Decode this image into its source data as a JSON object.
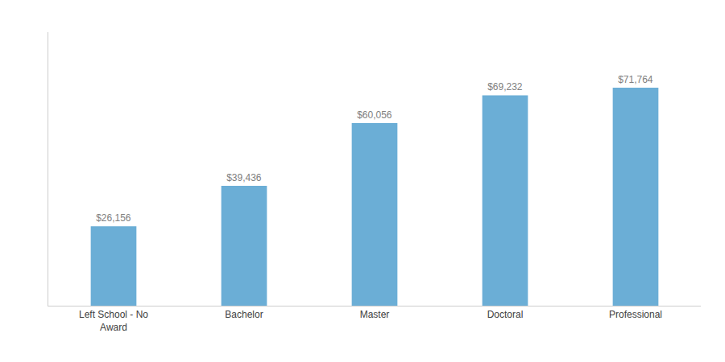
{
  "chart_data": {
    "type": "bar",
    "categories": [
      "Left School - No\nAward",
      "Bachelor",
      "Master",
      "Doctoral",
      "Professional"
    ],
    "values": [
      26156,
      39436,
      60056,
      69232,
      71764
    ],
    "value_labels": [
      "$26,156",
      "$39,436",
      "$60,056",
      "$69,232",
      "$71,764"
    ],
    "data_labels": true,
    "color": "#6BAED6",
    "ylim": [
      0,
      90000
    ],
    "tick_labels": "x",
    "grid": false
  }
}
